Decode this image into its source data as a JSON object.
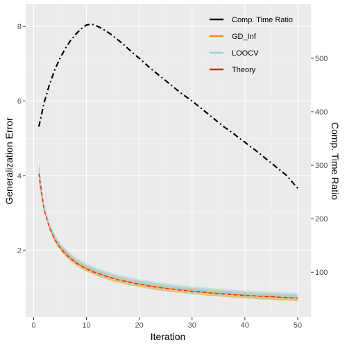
{
  "chart_data": {
    "type": "line",
    "xlabel": "Iteration",
    "ylabel": "Generalization Error",
    "y2label": "Comp. Time Ratio",
    "xlim": [
      -1.5,
      52.5
    ],
    "ylim": [
      0.2,
      8.6
    ],
    "y2lim": [
      16,
      601
    ],
    "x_ticks": [
      0,
      10,
      20,
      30,
      40,
      50
    ],
    "y_ticks": [
      2,
      4,
      6,
      8
    ],
    "y2_ticks": [
      100,
      200,
      300,
      400,
      500
    ],
    "grid": true,
    "legend_position": "top-right",
    "x": [
      1,
      2,
      3,
      4,
      5,
      6,
      7,
      8,
      9,
      10,
      11,
      12,
      13,
      14,
      15,
      16,
      17,
      18,
      19,
      20,
      21,
      22,
      23,
      24,
      25,
      26,
      27,
      28,
      29,
      30,
      31,
      32,
      33,
      34,
      35,
      36,
      37,
      38,
      39,
      40,
      41,
      42,
      43,
      44,
      45,
      46,
      47,
      48,
      49,
      50
    ],
    "series": [
      {
        "name": "Comp. Time Ratio",
        "axis": "right",
        "color": "#000000",
        "dash": "dot-dash",
        "values": [
          372,
          417,
          451,
          478,
          500,
          518,
          533,
          545,
          555,
          562,
          564,
          560,
          555,
          549,
          542,
          534,
          526,
          517,
          508,
          500,
          491,
          482,
          474,
          466,
          458,
          450,
          442,
          434,
          427,
          420,
          412,
          404,
          396,
          388,
          380,
          372,
          365,
          358,
          350,
          343,
          335,
          328,
          320,
          312,
          304,
          296,
          288,
          280,
          268,
          257
        ]
      },
      {
        "name": "GD_Inf",
        "axis": "left",
        "color": "#f0900a",
        "band_color": "#e8b96a",
        "values": [
          4.05,
          3.1,
          2.62,
          2.3,
          2.08,
          1.92,
          1.79,
          1.68,
          1.59,
          1.51,
          1.45,
          1.39,
          1.34,
          1.29,
          1.25,
          1.21,
          1.18,
          1.15,
          1.12,
          1.09,
          1.07,
          1.04,
          1.02,
          1.0,
          0.98,
          0.96,
          0.95,
          0.93,
          0.92,
          0.9,
          0.89,
          0.88,
          0.86,
          0.85,
          0.84,
          0.83,
          0.82,
          0.81,
          0.8,
          0.79,
          0.78,
          0.77,
          0.76,
          0.76,
          0.75,
          0.74,
          0.73,
          0.73,
          0.72,
          0.71
        ]
      },
      {
        "name": "LOOCV",
        "axis": "left",
        "color": "#9fd0de",
        "band_color": "#b4d6d8",
        "values": [
          4.05,
          3.13,
          2.65,
          2.34,
          2.12,
          1.96,
          1.83,
          1.72,
          1.63,
          1.56,
          1.49,
          1.43,
          1.38,
          1.34,
          1.3,
          1.26,
          1.22,
          1.19,
          1.16,
          1.13,
          1.11,
          1.09,
          1.06,
          1.04,
          1.02,
          1.01,
          0.99,
          0.97,
          0.96,
          0.94,
          0.93,
          0.92,
          0.91,
          0.89,
          0.88,
          0.87,
          0.86,
          0.85,
          0.84,
          0.83,
          0.82,
          0.82,
          0.81,
          0.8,
          0.79,
          0.79,
          0.78,
          0.77,
          0.77,
          0.76
        ]
      },
      {
        "name": "Theory",
        "axis": "left",
        "color": "#ee1c1c",
        "dash": "dashed",
        "values": [
          4.05,
          3.08,
          2.6,
          2.28,
          2.06,
          1.9,
          1.77,
          1.66,
          1.57,
          1.5,
          1.43,
          1.38,
          1.33,
          1.28,
          1.24,
          1.2,
          1.17,
          1.14,
          1.11,
          1.08,
          1.06,
          1.03,
          1.01,
          0.99,
          0.97,
          0.96,
          0.94,
          0.92,
          0.91,
          0.89,
          0.88,
          0.87,
          0.86,
          0.84,
          0.83,
          0.82,
          0.81,
          0.8,
          0.79,
          0.78,
          0.78,
          0.77,
          0.76,
          0.75,
          0.75,
          0.74,
          0.73,
          0.72,
          0.72,
          0.71
        ]
      }
    ]
  }
}
